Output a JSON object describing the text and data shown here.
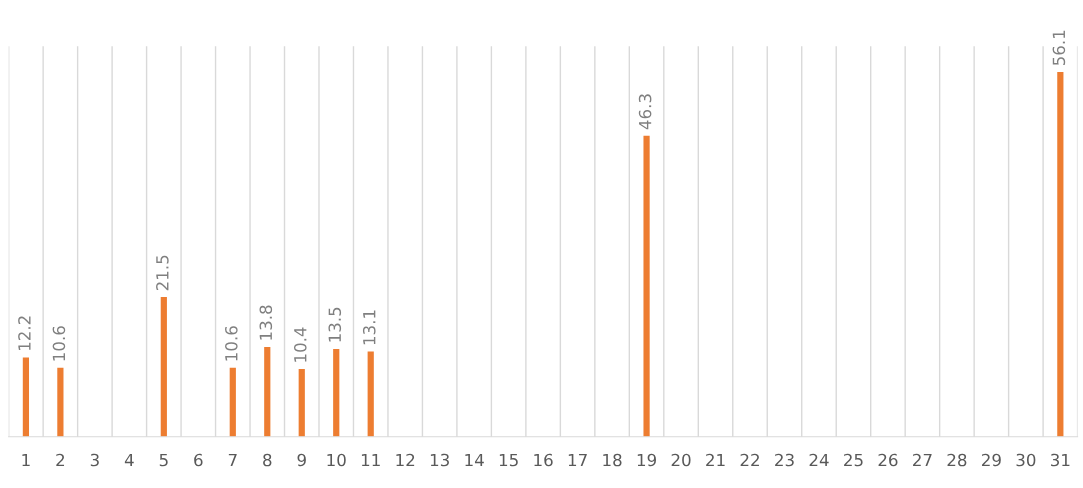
{
  "chart_data": {
    "type": "bar",
    "categories": [
      "1",
      "2",
      "3",
      "4",
      "5",
      "6",
      "7",
      "8",
      "9",
      "10",
      "11",
      "12",
      "13",
      "14",
      "15",
      "16",
      "17",
      "18",
      "19",
      "20",
      "21",
      "22",
      "23",
      "24",
      "25",
      "26",
      "27",
      "28",
      "29",
      "30",
      "31"
    ],
    "values": [
      12.2,
      10.6,
      null,
      null,
      21.5,
      null,
      10.6,
      13.8,
      10.4,
      13.5,
      13.1,
      null,
      null,
      null,
      null,
      null,
      null,
      null,
      46.3,
      null,
      null,
      null,
      null,
      null,
      null,
      null,
      null,
      null,
      null,
      null,
      56.1
    ],
    "color": "#ed7d31",
    "data_labels": true,
    "grid": "x",
    "tick_labels": "x"
  }
}
